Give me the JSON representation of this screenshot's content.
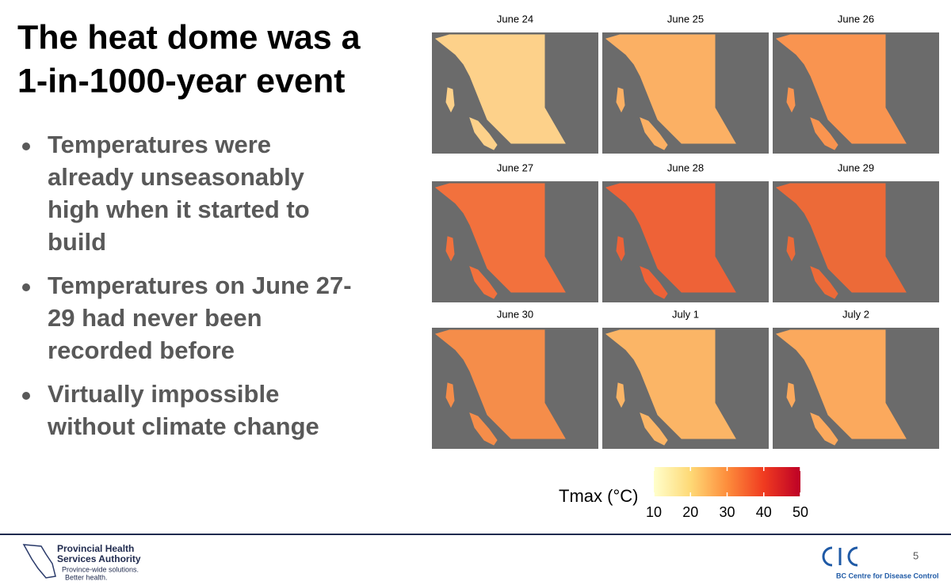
{
  "header": {
    "title": [
      "The heat dome was a",
      "1-in-1000-year event"
    ]
  },
  "bullets": [
    [
      "Temperatures were",
      "already unseasonably",
      "high when it started to",
      "build"
    ],
    [
      "Temperatures on June 27-",
      "29 had never been",
      "recorded before"
    ],
    [
      "Virtually impossible",
      "without climate change"
    ]
  ],
  "maps": [
    {
      "label": "June 24",
      "color": "#fdd18a"
    },
    {
      "label": "June 25",
      "color": "#fbb064"
    },
    {
      "label": "June 26",
      "color": "#f99450"
    },
    {
      "label": "June 27",
      "color": "#f2713d"
    },
    {
      "label": "June 28",
      "color": "#ee6237"
    },
    {
      "label": "June 29",
      "color": "#ec6a38"
    },
    {
      "label": "June 30",
      "color": "#f58d4a"
    },
    {
      "label": "July 1",
      "color": "#fbb566"
    },
    {
      "label": "July 2",
      "color": "#fba95d"
    }
  ],
  "legend": {
    "title": "Tmax (°C)",
    "lim": [
      10,
      50
    ],
    "ticks": [
      10,
      20,
      30,
      40,
      50
    ]
  },
  "footer": {
    "org": [
      "Provincial Health",
      "Services Authority"
    ],
    "tagline": [
      "Province-wide solutions.",
      "Better health."
    ],
    "page": "5",
    "right_org": "BC Centre for Disease Control"
  }
}
